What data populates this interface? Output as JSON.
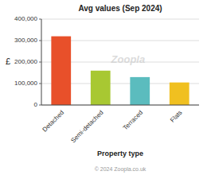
{
  "chart_data": {
    "type": "bar",
    "title": "Avg values (Sep 2024)",
    "categories": [
      "Detached",
      "Semi-detached",
      "Terraced",
      "Flats"
    ],
    "values": [
      320000,
      160000,
      130000,
      105000
    ],
    "colors": [
      "#e8502a",
      "#a8c832",
      "#5bbcbe",
      "#f0c020"
    ],
    "y_label": "£",
    "x_label": "Property type",
    "ylim": [
      0,
      400000
    ],
    "yticks": [
      0,
      {
        "value": 100000,
        "label": "100,000"
      },
      {
        "value": 200000,
        "label": "200,000"
      },
      {
        "value": 300000,
        "label": "300,000"
      },
      {
        "value": 400000,
        "label": "400,000"
      }
    ],
    "grid": true,
    "annotations": [
      "Zoopla",
      "© 2024 Zoopla.co.uk"
    ]
  }
}
